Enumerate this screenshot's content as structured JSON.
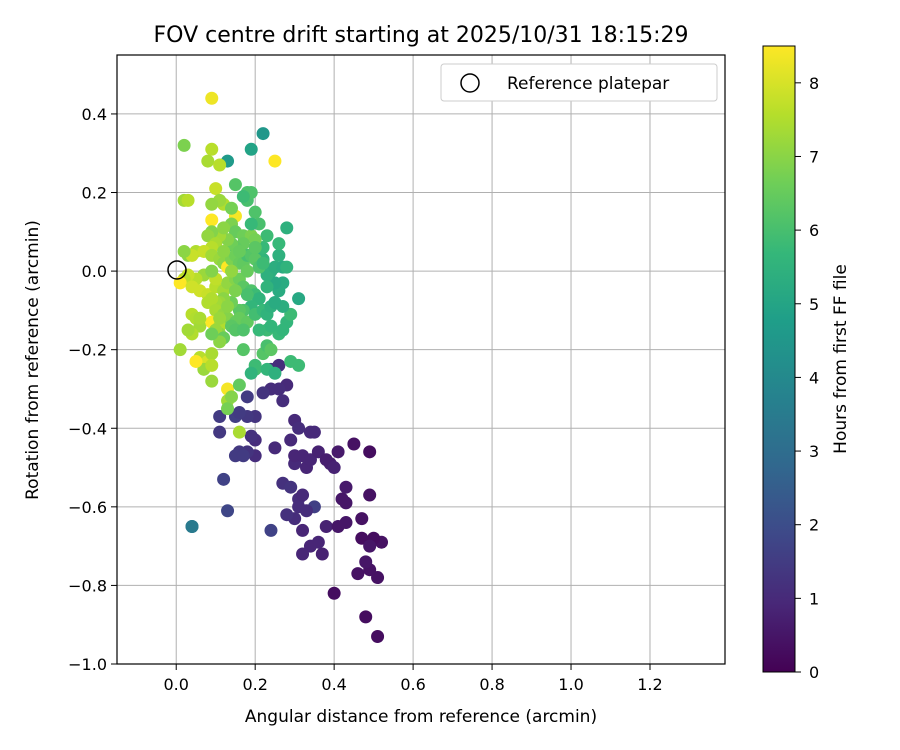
{
  "chart_data": {
    "type": "scatter",
    "title": "FOV centre drift starting at 2025/10/31 18:15:29",
    "xlabel": "Angular distance from reference (arcmin)",
    "ylabel": "Rotation from reference (arcmin)",
    "xlim": [
      -0.15,
      1.39
    ],
    "ylim": [
      -1.0,
      0.55
    ],
    "xticks": [
      0.0,
      0.2,
      0.4,
      0.6,
      0.8,
      1.0,
      1.2
    ],
    "xtick_labels": [
      "0.0",
      "0.2",
      "0.4",
      "0.6",
      "0.8",
      "1.0",
      "1.2"
    ],
    "yticks": [
      -1.0,
      -0.8,
      -0.6,
      -0.4,
      -0.2,
      0.0,
      0.2,
      0.4
    ],
    "ytick_labels": [
      "−1.0",
      "−0.8",
      "−0.6",
      "−0.4",
      "−0.2",
      "0.0",
      "0.2",
      "0.4"
    ],
    "grid": true,
    "legend": {
      "label": "Reference platepar",
      "placement": "top-right",
      "marker": "open-circle"
    },
    "reference_point": {
      "x": 0.0,
      "y": 0.0
    },
    "colorbar": {
      "label": "Hours from first FF file",
      "min": 0,
      "max": 8.5,
      "ticks": [
        0,
        1,
        2,
        3,
        4,
        5,
        6,
        7,
        8
      ],
      "tick_labels": [
        "0",
        "1",
        "2",
        "3",
        "4",
        "5",
        "6",
        "7",
        "8"
      ],
      "colormap": [
        "#440154",
        "#482878",
        "#3e4989",
        "#31688e",
        "#26828e",
        "#1f9e89",
        "#35b779",
        "#6ece58",
        "#b5de2b",
        "#fde725"
      ]
    },
    "points": [
      [
        0.51,
        -0.93,
        0.3
      ],
      [
        0.48,
        -0.88,
        0.3
      ],
      [
        0.4,
        -0.82,
        0.3
      ],
      [
        0.51,
        -0.78,
        0.4
      ],
      [
        0.46,
        -0.77,
        0.4
      ],
      [
        0.49,
        -0.76,
        0.4
      ],
      [
        0.48,
        -0.74,
        0.5
      ],
      [
        0.52,
        -0.69,
        0.4
      ],
      [
        0.5,
        -0.68,
        0.3
      ],
      [
        0.47,
        -0.68,
        0.3
      ],
      [
        0.49,
        -0.7,
        0.5
      ],
      [
        0.37,
        -0.72,
        0.8
      ],
      [
        0.36,
        -0.69,
        0.9
      ],
      [
        0.34,
        -0.7,
        0.9
      ],
      [
        0.32,
        -0.72,
        0.9
      ],
      [
        0.32,
        -0.66,
        0.9
      ],
      [
        0.38,
        -0.65,
        0.8
      ],
      [
        0.41,
        -0.65,
        0.5
      ],
      [
        0.43,
        -0.64,
        0.5
      ],
      [
        0.47,
        -0.63,
        0.4
      ],
      [
        0.49,
        -0.57,
        0.4
      ],
      [
        0.43,
        -0.59,
        0.5
      ],
      [
        0.42,
        -0.58,
        0.5
      ],
      [
        0.43,
        -0.55,
        0.6
      ],
      [
        0.31,
        -0.6,
        1.1
      ],
      [
        0.3,
        -0.63,
        1.1
      ],
      [
        0.28,
        -0.62,
        1.2
      ],
      [
        0.27,
        -0.54,
        1.2
      ],
      [
        0.24,
        -0.66,
        1.7
      ],
      [
        0.35,
        -0.6,
        1.6
      ],
      [
        0.29,
        -0.55,
        1.3
      ],
      [
        0.31,
        -0.58,
        1.1
      ],
      [
        0.32,
        -0.57,
        1.0
      ],
      [
        0.33,
        -0.61,
        1.1
      ],
      [
        0.3,
        -0.49,
        1.0
      ],
      [
        0.3,
        -0.47,
        0.9
      ],
      [
        0.32,
        -0.47,
        0.9
      ],
      [
        0.33,
        -0.5,
        0.9
      ],
      [
        0.34,
        -0.48,
        0.9
      ],
      [
        0.36,
        -0.46,
        0.8
      ],
      [
        0.38,
        -0.48,
        0.7
      ],
      [
        0.39,
        -0.49,
        0.7
      ],
      [
        0.4,
        -0.5,
        0.8
      ],
      [
        0.41,
        -0.46,
        0.6
      ],
      [
        0.45,
        -0.44,
        0.4
      ],
      [
        0.49,
        -0.46,
        0.3
      ],
      [
        0.35,
        -0.41,
        1.0
      ],
      [
        0.34,
        -0.41,
        1.0
      ],
      [
        0.29,
        -0.43,
        1.0
      ],
      [
        0.25,
        -0.45,
        1.0
      ],
      [
        0.3,
        -0.38,
        1.0
      ],
      [
        0.31,
        -0.4,
        1.1
      ],
      [
        0.28,
        -0.29,
        1.0
      ],
      [
        0.26,
        -0.3,
        1.1
      ],
      [
        0.27,
        -0.33,
        1.1
      ],
      [
        0.24,
        -0.3,
        1.1
      ],
      [
        0.2,
        -0.43,
        1.1
      ],
      [
        0.2,
        -0.47,
        1.1
      ],
      [
        0.19,
        -0.42,
        1.2
      ],
      [
        0.18,
        -0.46,
        1.3
      ],
      [
        0.16,
        -0.46,
        1.4
      ],
      [
        0.15,
        -0.47,
        1.5
      ],
      [
        0.17,
        -0.47,
        1.5
      ],
      [
        0.2,
        -0.37,
        1.3
      ],
      [
        0.18,
        -0.37,
        1.4
      ],
      [
        0.15,
        -0.37,
        1.6
      ],
      [
        0.11,
        -0.37,
        1.5
      ],
      [
        0.11,
        -0.41,
        1.4
      ],
      [
        0.12,
        -0.53,
        1.7
      ],
      [
        0.13,
        -0.61,
        1.8
      ],
      [
        0.04,
        -0.65,
        3.5
      ],
      [
        0.04,
        -0.65,
        3.5
      ],
      [
        0.18,
        -0.32,
        1.5
      ],
      [
        0.24,
        -0.25,
        1.2
      ],
      [
        0.26,
        -0.24,
        1.1
      ],
      [
        0.16,
        -0.36,
        1.5
      ],
      [
        0.16,
        -0.41,
        7.4
      ],
      [
        0.13,
        -0.33,
        7.3
      ],
      [
        0.13,
        -0.3,
        8.4
      ],
      [
        0.13,
        -0.35,
        6.7
      ],
      [
        0.14,
        -0.32,
        6.9
      ],
      [
        0.16,
        -0.29,
        6.4
      ],
      [
        0.2,
        -0.25,
        5.9
      ],
      [
        0.2,
        -0.24,
        5.8
      ],
      [
        0.23,
        -0.25,
        5.6
      ],
      [
        0.25,
        -0.26,
        5.4
      ],
      [
        0.31,
        -0.24,
        5.8
      ],
      [
        0.22,
        -0.21,
        6.2
      ],
      [
        0.23,
        -0.19,
        6.0
      ],
      [
        0.24,
        -0.2,
        6.3
      ],
      [
        0.26,
        -0.16,
        5.7
      ],
      [
        0.28,
        -0.13,
        5.6
      ],
      [
        0.29,
        -0.11,
        5.8
      ],
      [
        0.31,
        -0.07,
        5.1
      ],
      [
        0.27,
        -0.09,
        5.3
      ],
      [
        0.26,
        -0.05,
        5.2
      ],
      [
        0.27,
        -0.03,
        5.2
      ],
      [
        0.25,
        -0.03,
        5.1
      ],
      [
        0.24,
        0.0,
        5.3
      ],
      [
        0.23,
        -0.01,
        5.4
      ],
      [
        0.22,
        0.03,
        5.5
      ],
      [
        0.21,
        0.05,
        5.6
      ],
      [
        0.22,
        0.06,
        5.7
      ],
      [
        0.25,
        0.01,
        5.3
      ],
      [
        0.27,
        0.01,
        5.2
      ],
      [
        0.26,
        0.04,
        5.4
      ],
      [
        0.28,
        0.01,
        5.5
      ],
      [
        0.26,
        0.07,
        5.7
      ],
      [
        0.28,
        0.11,
        5.4
      ],
      [
        0.23,
        0.09,
        5.8
      ],
      [
        0.21,
        0.12,
        6.0
      ],
      [
        0.2,
        0.15,
        6.1
      ],
      [
        0.18,
        0.18,
        6.0
      ],
      [
        0.18,
        0.2,
        6.1
      ],
      [
        0.19,
        0.2,
        6.1
      ],
      [
        0.15,
        0.22,
        6.2
      ],
      [
        0.17,
        0.19,
        5.8
      ],
      [
        0.19,
        0.31,
        4.9
      ],
      [
        0.22,
        0.35,
        4.5
      ],
      [
        0.13,
        0.28,
        4.6
      ],
      [
        0.25,
        0.28,
        8.5
      ],
      [
        0.02,
        0.32,
        6.8
      ],
      [
        0.09,
        0.44,
        8.3
      ],
      [
        0.09,
        0.31,
        7.6
      ],
      [
        0.08,
        0.28,
        7.4
      ],
      [
        0.11,
        0.27,
        7.6
      ],
      [
        0.1,
        0.21,
        7.8
      ],
      [
        0.12,
        0.17,
        7.5
      ],
      [
        0.11,
        0.18,
        7.2
      ],
      [
        0.09,
        0.17,
        7.1
      ],
      [
        0.02,
        0.18,
        7.3
      ],
      [
        0.03,
        0.18,
        7.6
      ],
      [
        0.09,
        0.13,
        8.5
      ],
      [
        0.15,
        0.14,
        8.4
      ],
      [
        0.14,
        0.12,
        6.8
      ],
      [
        0.15,
        0.1,
        6.5
      ],
      [
        0.17,
        0.09,
        6.6
      ],
      [
        0.19,
        0.09,
        6.8
      ],
      [
        0.2,
        0.08,
        6.7
      ],
      [
        0.17,
        0.07,
        6.5
      ],
      [
        0.15,
        0.06,
        6.4
      ],
      [
        0.14,
        0.07,
        6.6
      ],
      [
        0.13,
        0.08,
        6.9
      ],
      [
        0.11,
        0.09,
        7.3
      ],
      [
        0.09,
        0.1,
        6.9
      ],
      [
        0.08,
        0.09,
        7.1
      ],
      [
        0.1,
        0.07,
        7.4
      ],
      [
        0.09,
        0.06,
        7.6
      ],
      [
        0.05,
        0.05,
        7.5
      ],
      [
        0.03,
        0.04,
        7.0
      ],
      [
        0.04,
        0.04,
        7.8
      ],
      [
        0.07,
        0.05,
        7.8
      ],
      [
        0.09,
        0.04,
        7.3
      ],
      [
        0.11,
        0.03,
        7.2
      ],
      [
        0.12,
        0.02,
        7.0
      ],
      [
        0.13,
        0.01,
        8.6
      ],
      [
        0.14,
        0.03,
        6.8
      ],
      [
        0.15,
        0.04,
        6.6
      ],
      [
        0.16,
        0.02,
        6.5
      ],
      [
        0.17,
        0.02,
        6.4
      ],
      [
        0.18,
        0.04,
        6.0
      ],
      [
        0.19,
        0.04,
        6.2
      ],
      [
        0.2,
        0.03,
        6.3
      ],
      [
        0.21,
        0.01,
        6.1
      ],
      [
        0.22,
        0.02,
        5.8
      ],
      [
        0.07,
        -0.01,
        7.2
      ],
      [
        0.05,
        -0.02,
        7.6
      ],
      [
        0.03,
        -0.01,
        7.8
      ],
      [
        0.02,
        -0.02,
        7.6
      ],
      [
        0.01,
        -0.03,
        8.5
      ],
      [
        0.04,
        -0.04,
        7.9
      ],
      [
        0.06,
        -0.05,
        7.9
      ],
      [
        0.08,
        -0.06,
        7.8
      ],
      [
        0.1,
        -0.04,
        7.6
      ],
      [
        0.12,
        -0.05,
        7.3
      ],
      [
        0.13,
        -0.03,
        7.1
      ],
      [
        0.15,
        -0.02,
        6.9
      ],
      [
        0.16,
        -0.02,
        6.6
      ],
      [
        0.17,
        -0.04,
        6.3
      ],
      [
        0.19,
        -0.05,
        6.1
      ],
      [
        0.2,
        -0.06,
        5.8
      ],
      [
        0.21,
        -0.07,
        5.5
      ],
      [
        0.19,
        -0.09,
        5.6
      ],
      [
        0.17,
        -0.1,
        6.1
      ],
      [
        0.16,
        -0.1,
        6.3
      ],
      [
        0.14,
        -0.08,
        6.6
      ],
      [
        0.12,
        -0.07,
        7.0
      ],
      [
        0.11,
        -0.08,
        7.2
      ],
      [
        0.1,
        -0.08,
        7.3
      ],
      [
        0.09,
        -0.07,
        7.5
      ],
      [
        0.08,
        -0.08,
        7.5
      ],
      [
        0.1,
        -0.1,
        7.4
      ],
      [
        0.12,
        -0.11,
        7.1
      ],
      [
        0.13,
        -0.12,
        6.9
      ],
      [
        0.15,
        -0.13,
        6.5
      ],
      [
        0.16,
        -0.12,
        6.5
      ],
      [
        0.18,
        -0.13,
        6.4
      ],
      [
        0.2,
        -0.11,
        5.9
      ],
      [
        0.22,
        -0.1,
        5.7
      ],
      [
        0.23,
        -0.11,
        5.5
      ],
      [
        0.24,
        -0.09,
        5.4
      ],
      [
        0.25,
        -0.08,
        5.2
      ],
      [
        0.04,
        -0.11,
        7.6
      ],
      [
        0.05,
        -0.12,
        7.5
      ],
      [
        0.06,
        -0.14,
        7.3
      ],
      [
        0.04,
        -0.16,
        7.5
      ],
      [
        0.03,
        -0.15,
        7.3
      ],
      [
        0.09,
        -0.13,
        8.6
      ],
      [
        0.11,
        -0.14,
        7.5
      ],
      [
        0.11,
        -0.16,
        7.0
      ],
      [
        0.1,
        -0.15,
        7.2
      ],
      [
        0.12,
        -0.17,
        6.5
      ],
      [
        0.11,
        -0.18,
        7.0
      ],
      [
        0.09,
        -0.16,
        6.6
      ],
      [
        0.14,
        -0.14,
        6.3
      ],
      [
        0.15,
        -0.15,
        6.2
      ],
      [
        0.17,
        -0.15,
        6.1
      ],
      [
        0.23,
        -0.15,
        5.8
      ],
      [
        0.24,
        -0.14,
        5.6
      ],
      [
        0.27,
        -0.15,
        5.6
      ],
      [
        0.01,
        -0.2,
        7.3
      ],
      [
        0.06,
        -0.22,
        7.6
      ],
      [
        0.08,
        -0.23,
        8.0
      ],
      [
        0.09,
        -0.21,
        7.4
      ],
      [
        0.07,
        -0.25,
        7.2
      ],
      [
        0.09,
        -0.24,
        7.6
      ],
      [
        0.05,
        -0.23,
        8.5
      ],
      [
        0.09,
        -0.28,
        7.2
      ],
      [
        0.02,
        0.05,
        7.0
      ],
      [
        0.1,
        -0.02,
        7.7
      ],
      [
        0.12,
        0.05,
        7.0
      ],
      [
        0.09,
        0.0,
        6.9
      ],
      [
        0.18,
        -0.06,
        6.0
      ],
      [
        0.14,
        0.0,
        7.1
      ],
      [
        0.19,
        0.12,
        5.7
      ],
      [
        0.23,
        -0.04,
        5.5
      ],
      [
        0.21,
        -0.15,
        5.7
      ],
      [
        0.17,
        -0.2,
        6.2
      ],
      [
        0.19,
        -0.26,
        5.5
      ],
      [
        0.29,
        -0.23,
        5.8
      ],
      [
        0.22,
        -0.31,
        1.3
      ],
      [
        0.11,
        -0.12,
        7.2
      ],
      [
        0.13,
        -0.09,
        7.0
      ],
      [
        0.15,
        -0.05,
        6.8
      ],
      [
        0.18,
        0.0,
        6.5
      ],
      [
        0.2,
        0.06,
        6.3
      ],
      [
        0.14,
        0.16,
        6.7
      ],
      [
        0.12,
        0.11,
        7.0
      ],
      [
        0.16,
        0.05,
        6.5
      ],
      [
        0.06,
        -0.12,
        7.4
      ]
    ]
  }
}
